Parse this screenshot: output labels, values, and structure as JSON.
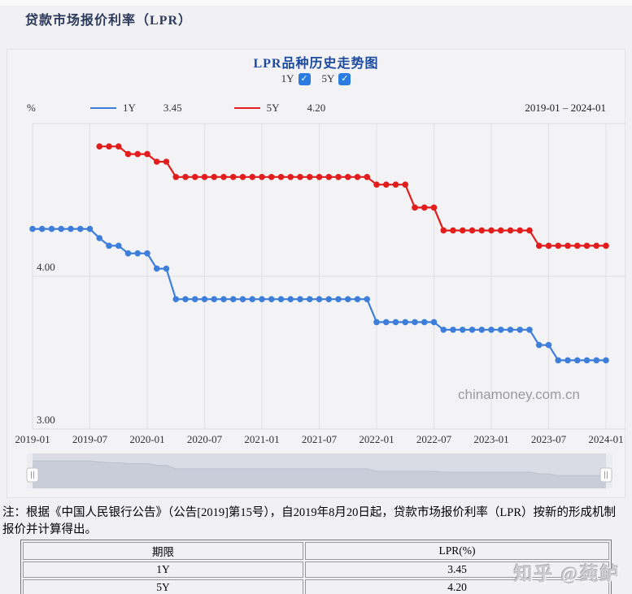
{
  "page": {
    "title": "贷款市场报价利率（LPR）"
  },
  "chart": {
    "title": "LPR品种历史走势图",
    "controls": [
      {
        "label": "1Y",
        "checked": true
      },
      {
        "label": "5Y",
        "checked": true
      }
    ],
    "check_glyph": "✓",
    "unit_label": "%",
    "legend": [
      {
        "name": "1Y",
        "value": "3.45",
        "color": "#3d7edb"
      },
      {
        "name": "5Y",
        "value": "4.20",
        "color": "#e11d1d"
      }
    ],
    "date_range": "2019-01 – 2024-01",
    "y_ticks": [
      "4.00",
      "3.00"
    ],
    "watermark": "chinamoney.com.cn",
    "handle_glyph": "‖"
  },
  "chart_data": {
    "type": "line",
    "title": "LPR品种历史走势图",
    "x_start": "2019-01",
    "x_end": "2024-01",
    "x_interval_months": 1,
    "x_tick_labels": [
      "2019-01",
      "2019-07",
      "2020-01",
      "2020-07",
      "2021-01",
      "2021-07",
      "2022-01",
      "2022-07",
      "2023-01",
      "2023-07",
      "2024-01"
    ],
    "ylim": [
      3.0,
      5.0
    ],
    "y_gridlines": [
      5.0,
      4.0,
      3.0
    ],
    "grid": true,
    "legend_position": "top",
    "series": [
      {
        "name": "1Y",
        "color": "#3d7edb",
        "start": "2019-01",
        "values": [
          4.31,
          4.31,
          4.31,
          4.31,
          4.31,
          4.31,
          4.31,
          4.25,
          4.2,
          4.2,
          4.15,
          4.15,
          4.15,
          4.05,
          4.05,
          3.85,
          3.85,
          3.85,
          3.85,
          3.85,
          3.85,
          3.85,
          3.85,
          3.85,
          3.85,
          3.85,
          3.85,
          3.85,
          3.85,
          3.85,
          3.85,
          3.85,
          3.85,
          3.85,
          3.85,
          3.85,
          3.7,
          3.7,
          3.7,
          3.7,
          3.7,
          3.7,
          3.7,
          3.65,
          3.65,
          3.65,
          3.65,
          3.65,
          3.65,
          3.65,
          3.65,
          3.65,
          3.65,
          3.55,
          3.55,
          3.45,
          3.45,
          3.45,
          3.45,
          3.45,
          3.45
        ]
      },
      {
        "name": "5Y",
        "color": "#e11d1d",
        "start": "2019-08",
        "values": [
          4.85,
          4.85,
          4.85,
          4.8,
          4.8,
          4.8,
          4.75,
          4.75,
          4.65,
          4.65,
          4.65,
          4.65,
          4.65,
          4.65,
          4.65,
          4.65,
          4.65,
          4.65,
          4.65,
          4.65,
          4.65,
          4.65,
          4.65,
          4.65,
          4.65,
          4.65,
          4.65,
          4.65,
          4.65,
          4.6,
          4.6,
          4.6,
          4.6,
          4.45,
          4.45,
          4.45,
          4.3,
          4.3,
          4.3,
          4.3,
          4.3,
          4.3,
          4.3,
          4.3,
          4.3,
          4.3,
          4.2,
          4.2,
          4.2,
          4.2,
          4.2,
          4.2,
          4.2,
          4.2
        ]
      }
    ]
  },
  "note": {
    "line1": "注：根据《中国人民银行公告》（公告[2019]第15号），自2019年8月20日起，贷款市场报价利率（LPR）按新的形成机制",
    "line2": "报价并计算得出。"
  },
  "table": {
    "headers": [
      "期限",
      "LPR(%)"
    ],
    "rows": [
      [
        "1Y",
        "3.45"
      ],
      [
        "5Y",
        "4.20"
      ]
    ]
  },
  "zhihu_watermark": "知乎 @莼鲈"
}
